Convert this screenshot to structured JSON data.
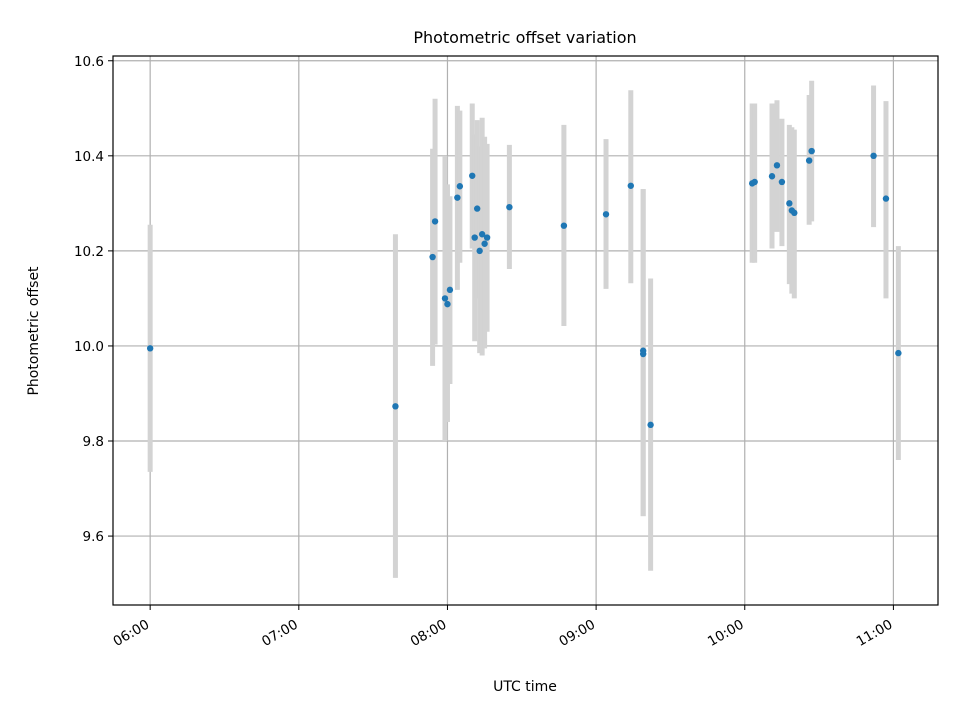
{
  "chart_data": {
    "type": "scatter",
    "title": "Photometric offset variation",
    "xlabel": "UTC time",
    "ylabel": "Photometric offset",
    "x_unit": "UTC time (HH:MM)",
    "xlim": [
      "05:45",
      "11:18"
    ],
    "ylim": [
      9.455,
      10.61
    ],
    "x_ticks": [
      "06:00",
      "07:00",
      "08:00",
      "09:00",
      "10:00",
      "11:00"
    ],
    "y_ticks": [
      9.6,
      9.8,
      10.0,
      10.2,
      10.4,
      10.6
    ],
    "y_tick_labels": [
      "9.6",
      "9.8",
      "10.0",
      "10.2",
      "10.4",
      "10.6"
    ],
    "grid": true,
    "marker_color": "#1f77b4",
    "errorbar_color": "#d3d3d3",
    "points": [
      {
        "x": "06:00",
        "y": 9.995,
        "lo": 9.735,
        "hi": 10.255
      },
      {
        "x": "07:39",
        "y": 9.873,
        "lo": 9.512,
        "hi": 10.235
      },
      {
        "x": "07:54",
        "y": 10.187,
        "lo": 9.958,
        "hi": 10.415
      },
      {
        "x": "07:55",
        "y": 10.262,
        "lo": 10.003,
        "hi": 10.52
      },
      {
        "x": "07:59",
        "y": 10.1,
        "lo": 9.8,
        "hi": 10.4
      },
      {
        "x": "08:00",
        "y": 10.088,
        "lo": 9.84,
        "hi": 10.34
      },
      {
        "x": "08:01",
        "y": 10.118,
        "lo": 9.92,
        "hi": 10.315
      },
      {
        "x": "08:04",
        "y": 10.312,
        "lo": 10.118,
        "hi": 10.505
      },
      {
        "x": "08:05",
        "y": 10.336,
        "lo": 10.175,
        "hi": 10.495
      },
      {
        "x": "08:10",
        "y": 10.358,
        "lo": 10.205,
        "hi": 10.51
      },
      {
        "x": "08:11",
        "y": 10.228,
        "lo": 10.01,
        "hi": 10.445
      },
      {
        "x": "08:12",
        "y": 10.289,
        "lo": 10.1,
        "hi": 10.475
      },
      {
        "x": "08:13",
        "y": 10.2,
        "lo": 9.985,
        "hi": 10.42
      },
      {
        "x": "08:14",
        "y": 10.235,
        "lo": 9.98,
        "hi": 10.48
      },
      {
        "x": "08:15",
        "y": 10.215,
        "lo": 9.995,
        "hi": 10.44
      },
      {
        "x": "08:16",
        "y": 10.228,
        "lo": 10.03,
        "hi": 10.425
      },
      {
        "x": "08:25",
        "y": 10.292,
        "lo": 10.162,
        "hi": 10.423
      },
      {
        "x": "08:47",
        "y": 10.253,
        "lo": 10.042,
        "hi": 10.465
      },
      {
        "x": "09:04",
        "y": 10.277,
        "lo": 10.12,
        "hi": 10.435
      },
      {
        "x": "09:14",
        "y": 10.337,
        "lo": 10.132,
        "hi": 10.538
      },
      {
        "x": "09:19",
        "y": 9.99,
        "lo": 9.642,
        "hi": 10.33
      },
      {
        "x": "09:19",
        "y": 9.983,
        "lo": 9.642,
        "hi": 10.33
      },
      {
        "x": "09:22",
        "y": 9.834,
        "lo": 9.527,
        "hi": 10.142
      },
      {
        "x": "10:03",
        "y": 10.342,
        "lo": 10.175,
        "hi": 10.51
      },
      {
        "x": "10:04",
        "y": 10.345,
        "lo": 10.175,
        "hi": 10.51
      },
      {
        "x": "10:11",
        "y": 10.357,
        "lo": 10.205,
        "hi": 10.51
      },
      {
        "x": "10:13",
        "y": 10.38,
        "lo": 10.24,
        "hi": 10.517
      },
      {
        "x": "10:15",
        "y": 10.345,
        "lo": 10.21,
        "hi": 10.478
      },
      {
        "x": "10:18",
        "y": 10.3,
        "lo": 10.13,
        "hi": 10.465
      },
      {
        "x": "10:19",
        "y": 10.285,
        "lo": 10.11,
        "hi": 10.46
      },
      {
        "x": "10:20",
        "y": 10.28,
        "lo": 10.1,
        "hi": 10.455
      },
      {
        "x": "10:26",
        "y": 10.39,
        "lo": 10.255,
        "hi": 10.528
      },
      {
        "x": "10:27",
        "y": 10.41,
        "lo": 10.262,
        "hi": 10.558
      },
      {
        "x": "10:52",
        "y": 10.4,
        "lo": 10.25,
        "hi": 10.548
      },
      {
        "x": "10:57",
        "y": 10.31,
        "lo": 10.1,
        "hi": 10.515
      },
      {
        "x": "11:02",
        "y": 9.985,
        "lo": 9.76,
        "hi": 10.21
      }
    ]
  }
}
